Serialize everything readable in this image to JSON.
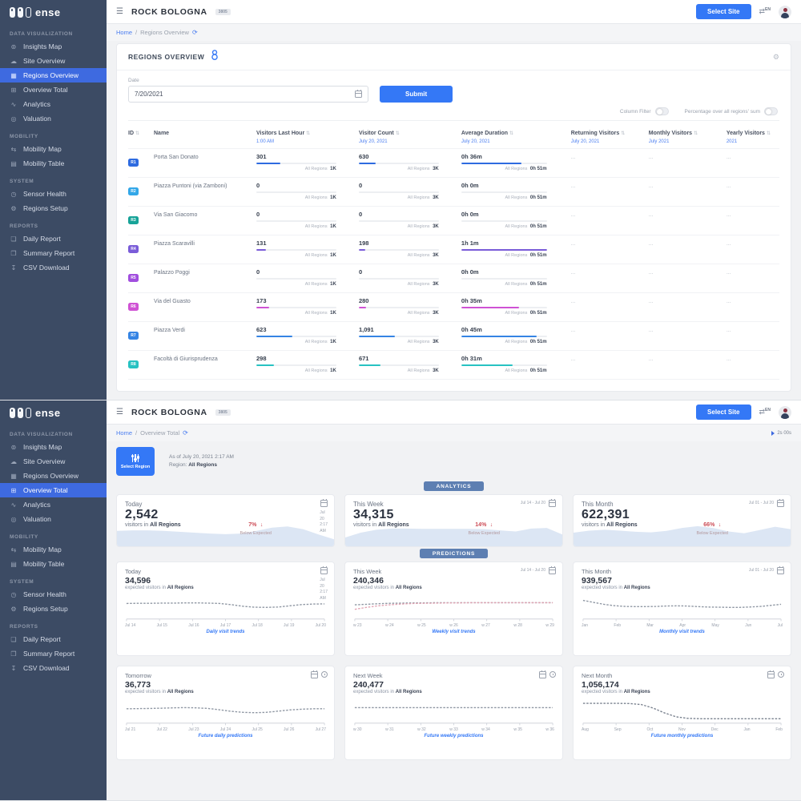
{
  "brand": {
    "logo_text": "ense"
  },
  "topbar": {
    "title": "ROCK BOLOGNA",
    "title_badge": "3805",
    "select_site_label": "Select Site",
    "language": "EN"
  },
  "sidebar": {
    "sections": [
      {
        "title": "DATA VISUALIZATION",
        "items": [
          {
            "label": "Insights Map",
            "icon": "insights-map-icon"
          },
          {
            "label": "Site Overview",
            "icon": "site-overview-icon"
          },
          {
            "label": "Regions Overview",
            "icon": "regions-overview-icon"
          },
          {
            "label": "Overview Total",
            "icon": "overview-total-icon"
          },
          {
            "label": "Analytics",
            "icon": "analytics-icon"
          },
          {
            "label": "Valuation",
            "icon": "valuation-icon"
          }
        ]
      },
      {
        "title": "MOBILITY",
        "items": [
          {
            "label": "Mobility Map",
            "icon": "mobility-map-icon"
          },
          {
            "label": "Mobility Table",
            "icon": "mobility-table-icon"
          }
        ]
      },
      {
        "title": "SYSTEM",
        "items": [
          {
            "label": "Sensor Health",
            "icon": "sensor-health-icon"
          },
          {
            "label": "Regions Setup",
            "icon": "regions-setup-icon"
          }
        ]
      },
      {
        "title": "REPORTS",
        "items": [
          {
            "label": "Daily Report",
            "icon": "daily-report-icon"
          },
          {
            "label": "Summary Report",
            "icon": "summary-report-icon"
          },
          {
            "label": "CSV Download",
            "icon": "csv-download-icon"
          }
        ]
      }
    ]
  },
  "screen1": {
    "active_item": "Regions Overview",
    "breadcrumb": {
      "home": "Home",
      "separator": "/",
      "current": "Regions Overview"
    },
    "panel": {
      "title": "REGIONS OVERVIEW",
      "date_label": "Date",
      "date_value": "7/20/2021",
      "submit_label": "Submit",
      "toggles": [
        {
          "label": "Column Filter",
          "on": false
        },
        {
          "label": "Percentage over all regions' sum",
          "on": false
        }
      ]
    },
    "table": {
      "footnote_label": "All Regions",
      "empty_placeholder": "...",
      "columns": [
        {
          "label": "ID",
          "sub": "",
          "sortable": true
        },
        {
          "label": "Name",
          "sub": "",
          "sortable": false
        },
        {
          "label": "Visitors Last Hour",
          "sub": "1:00 AM",
          "sortable": true,
          "footnote": "1K"
        },
        {
          "label": "Visitor Count",
          "sub": "July 20, 2021",
          "sortable": true,
          "footnote": "3K"
        },
        {
          "label": "Average Duration",
          "sub": "July 20, 2021",
          "sortable": true,
          "footnote": "0h 51m"
        },
        {
          "label": "Returning Visitors",
          "sub": "July 20, 2021",
          "sortable": true
        },
        {
          "label": "Monthly Visitors",
          "sub": "July 2021",
          "sortable": true
        },
        {
          "label": "Yearly Visitors",
          "sub": "2021",
          "sortable": true
        }
      ],
      "rows": [
        {
          "id": "R1",
          "color": "#2e6be0",
          "name": "Porta San Donato",
          "last_hour": {
            "value": "301",
            "pct": 30
          },
          "count": {
            "value": "630",
            "pct": 21
          },
          "duration": {
            "value": "0h 36m",
            "pct": 70
          }
        },
        {
          "id": "R2",
          "color": "#33a7e8",
          "name": "Piazza Puntoni (via Zamboni)",
          "last_hour": {
            "value": "0",
            "pct": 0
          },
          "count": {
            "value": "0",
            "pct": 0
          },
          "duration": {
            "value": "0h 0m",
            "pct": 0
          }
        },
        {
          "id": "R3",
          "color": "#17a398",
          "name": "Via San Giacomo",
          "last_hour": {
            "value": "0",
            "pct": 0
          },
          "count": {
            "value": "0",
            "pct": 0
          },
          "duration": {
            "value": "0h 0m",
            "pct": 0
          }
        },
        {
          "id": "R4",
          "color": "#7a5cd8",
          "name": "Piazza Scaravilli",
          "last_hour": {
            "value": "131",
            "pct": 12
          },
          "count": {
            "value": "198",
            "pct": 8
          },
          "duration": {
            "value": "1h 1m",
            "pct": 100
          }
        },
        {
          "id": "R5",
          "color": "#a14ede",
          "name": "Palazzo Poggi",
          "last_hour": {
            "value": "0",
            "pct": 0
          },
          "count": {
            "value": "0",
            "pct": 0
          },
          "duration": {
            "value": "0h 0m",
            "pct": 0
          }
        },
        {
          "id": "R6",
          "color": "#cf52d4",
          "name": "Via del Guasto",
          "last_hour": {
            "value": "173",
            "pct": 16
          },
          "count": {
            "value": "280",
            "pct": 9
          },
          "duration": {
            "value": "0h 35m",
            "pct": 68
          }
        },
        {
          "id": "R7",
          "color": "#3584e4",
          "name": "Piazza Verdi",
          "last_hour": {
            "value": "623",
            "pct": 45
          },
          "count": {
            "value": "1,091",
            "pct": 45
          },
          "duration": {
            "value": "0h 45m",
            "pct": 88
          }
        },
        {
          "id": "R8",
          "color": "#27c2c2",
          "name": "Facoltà di Giurisprudenza",
          "last_hour": {
            "value": "298",
            "pct": 22
          },
          "count": {
            "value": "671",
            "pct": 27
          },
          "duration": {
            "value": "0h 31m",
            "pct": 60
          }
        }
      ]
    }
  },
  "screen2": {
    "active_item": "Overview Total",
    "breadcrumb": {
      "home": "Home",
      "separator": "/",
      "current": "Overview Total"
    },
    "timer": "2s 00s",
    "select_region_label": "Select Region",
    "as_of": "As of July 20, 2021 2:17 AM",
    "region_label": "Region:",
    "region_value": "All Regions",
    "analytics_section_label": "ANALYTICS",
    "predictions_section_label": "PREDICTIONS",
    "analytics_cards": [
      {
        "title": "Today",
        "value": "2,542",
        "sub_prefix": "visitors in",
        "region": "All Regions",
        "delta": "7%",
        "delta_arrow": "↓",
        "delta_note": "Below Expected",
        "date": "Jul 20",
        "date2": "2:17 AM"
      },
      {
        "title": "This Week",
        "value": "34,315",
        "sub_prefix": "visitors in",
        "region": "All Regions",
        "delta": "14%",
        "delta_arrow": "↓",
        "delta_note": "Below Expected",
        "date": "Jul 14 - Jul 20"
      },
      {
        "title": "This Month",
        "value": "622,391",
        "sub_prefix": "visitors in",
        "region": "All Regions",
        "delta": "66%",
        "delta_arrow": "↓",
        "delta_note": "Below Expected",
        "date": "Jul 01 - Jul 20"
      }
    ],
    "prediction_cards": [
      {
        "title": "Today",
        "value": "34,596",
        "sub_prefix": "expected visitors in",
        "region": "All Regions",
        "date": "Jul 20",
        "date2": "2:17 AM"
      },
      {
        "title": "This Week",
        "value": "240,346",
        "sub_prefix": "expected visitors in",
        "region": "All Regions",
        "date": "Jul 14 - Jul 20"
      },
      {
        "title": "This Month",
        "value": "939,567",
        "sub_prefix": "expected visitors in",
        "region": "All Regions",
        "date": "Jul 01 - Jul 20"
      },
      {
        "title": "Tomorrow",
        "value": "36,773",
        "sub_prefix": "expected visitors in",
        "region": "All Regions"
      },
      {
        "title": "Next Week",
        "value": "240,477",
        "sub_prefix": "expected visitors in",
        "region": "All Regions"
      },
      {
        "title": "Next Month",
        "value": "1,056,174",
        "sub_prefix": "expected visitors in",
        "region": "All Regions"
      }
    ]
  },
  "chart_data": {
    "note": "y values are relative visitor levels 0-1 (charts have no visible y-axis labels)",
    "pred_today": {
      "type": "line",
      "caption": "Daily visit trends",
      "xticks": [
        "Jul 14",
        "Jul 15",
        "Jul 16",
        "Jul 17",
        "Jul 18",
        "Jul 19",
        "Jul 20"
      ],
      "series": [
        {
          "name": "expected visitors",
          "color": "#8f97a3",
          "values": [
            0.62,
            0.63,
            0.63,
            0.64,
            0.64,
            0.65,
            0.65,
            0.64,
            0.62,
            0.56,
            0.48,
            0.43,
            0.42,
            0.44,
            0.5,
            0.56,
            0.59,
            0.6
          ]
        }
      ]
    },
    "pred_week": {
      "type": "line",
      "caption": "Weekly visit trends",
      "xticks": [
        "w 23",
        "w 24",
        "w 25",
        "w 26",
        "w 27",
        "w 28",
        "w 29"
      ],
      "series": [
        {
          "name": "expected visitors",
          "color": "#8f97a3",
          "values": [
            0.55,
            0.58,
            0.61,
            0.63,
            0.64,
            0.65,
            0.65,
            0.66,
            0.66,
            0.66,
            0.66,
            0.66,
            0.66,
            0.66,
            0.66,
            0.66,
            0.66,
            0.66
          ]
        },
        {
          "name": "actual visitors",
          "color": "#e2a4b3",
          "values": [
            0.32,
            0.42,
            0.5,
            0.55,
            0.59,
            0.62,
            0.63,
            0.64,
            0.65,
            0.65,
            0.66,
            0.66,
            0.66,
            0.66,
            0.66,
            0.66,
            0.66,
            0.66
          ]
        }
      ]
    },
    "pred_month": {
      "type": "line",
      "caption": "Monthly visit trends",
      "xticks": [
        "Jan",
        "Feb",
        "Mar",
        "Apr",
        "May",
        "Jun",
        "Jul"
      ],
      "series": [
        {
          "name": "expected visitors",
          "color": "#8f97a3",
          "values": [
            0.78,
            0.68,
            0.58,
            0.51,
            0.47,
            0.46,
            0.46,
            0.47,
            0.49,
            0.5,
            0.49,
            0.46,
            0.44,
            0.43,
            0.42,
            0.42,
            0.44,
            0.47,
            0.52,
            0.58
          ]
        }
      ]
    },
    "pred_tomorrow": {
      "type": "line",
      "caption": "Future daily predictions",
      "xticks": [
        "Jul 21",
        "Jul 22",
        "Jul 23",
        "Jul 24",
        "Jul 25",
        "Jul 26",
        "Jul 27"
      ],
      "series": [
        {
          "name": "expected visitors",
          "color": "#8f97a3",
          "values": [
            0.56,
            0.57,
            0.58,
            0.59,
            0.61,
            0.62,
            0.61,
            0.58,
            0.51,
            0.43,
            0.38,
            0.36,
            0.38,
            0.44,
            0.5,
            0.54,
            0.56,
            0.56
          ]
        }
      ]
    },
    "pred_nextweek": {
      "type": "line",
      "caption": "Future weekly predictions",
      "xticks": [
        "w 30",
        "w 31",
        "w 32",
        "w 33",
        "w 34",
        "w 35",
        "w 36"
      ],
      "series": [
        {
          "name": "expected visitors",
          "color": "#8f97a3",
          "values": [
            0.62,
            0.62,
            0.62,
            0.62,
            0.62,
            0.62,
            0.62,
            0.62,
            0.62,
            0.62,
            0.62,
            0.62,
            0.62,
            0.62,
            0.62,
            0.62,
            0.62,
            0.62
          ]
        }
      ]
    },
    "pred_nextmonth": {
      "type": "line",
      "caption": "Future monthly predictions",
      "xticks": [
        "Aug",
        "Sep",
        "Oct",
        "Nov",
        "Dec",
        "Jan",
        "Feb"
      ],
      "series": [
        {
          "name": "expected visitors",
          "color": "#7a828f",
          "values": [
            0.84,
            0.84,
            0.84,
            0.84,
            0.83,
            0.78,
            0.6,
            0.35,
            0.15,
            0.07,
            0.05,
            0.05,
            0.05,
            0.05,
            0.05,
            0.05,
            0.05,
            0.05
          ]
        }
      ]
    },
    "analytics_today_wave": {
      "type": "area",
      "fill": "#dce6f4",
      "values": [
        0.52,
        0.54,
        0.54,
        0.52,
        0.49,
        0.46,
        0.43,
        0.41,
        0.43,
        0.52,
        0.63,
        0.67,
        0.58,
        0.4,
        0.24
      ]
    },
    "analytics_week_wave": {
      "type": "area",
      "fill": "#dce6f4",
      "values": [
        0.3,
        0.46,
        0.56,
        0.6,
        0.6,
        0.59,
        0.59,
        0.59,
        0.59,
        0.58,
        0.54,
        0.5,
        0.6,
        0.62,
        0.4
      ]
    },
    "analytics_month_wave": {
      "type": "area",
      "fill": "#dce6f4",
      "values": [
        0.46,
        0.53,
        0.56,
        0.53,
        0.49,
        0.47,
        0.52,
        0.62,
        0.68,
        0.62,
        0.5,
        0.44,
        0.55,
        0.66,
        0.58
      ]
    }
  }
}
